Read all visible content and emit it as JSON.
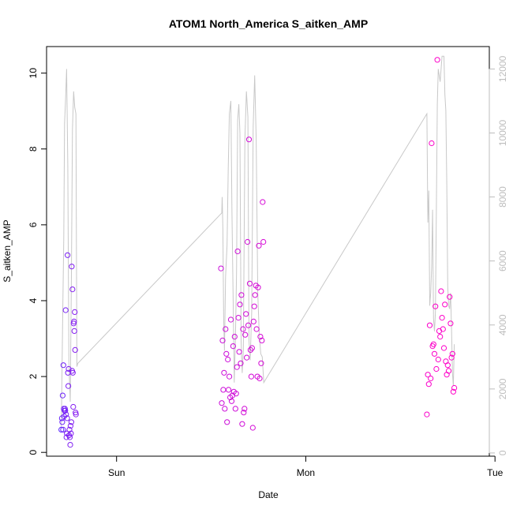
{
  "chart_data": {
    "type": "scatter",
    "title": "ATOM1 North_America S_aitken_AMP",
    "xlabel": "Date",
    "ylabel": "S_aitken_AMP",
    "x_ticks": [
      "Sun",
      "Mon",
      "Tue"
    ],
    "y_ticks": [
      "0",
      "2",
      "4",
      "6",
      "8",
      "10"
    ],
    "y_right_ticks": [
      "0",
      "2000",
      "4000",
      "6000",
      "8000",
      "10000",
      "12000"
    ],
    "x_unit": "day",
    "xlim": [
      -0.37,
      1.97
    ],
    "ylim": [
      -0.1,
      10.7
    ],
    "y_right_lim": [
      -100,
      12700
    ],
    "grid": false,
    "colors": {
      "line": "#c8c8c8",
      "points_start": "#5a28ff",
      "points_end": "#ff00c8",
      "right_axis": "#bdbdbd",
      "frame": "#000000"
    },
    "series": [
      {
        "type": "scatter",
        "points": [
          [
            -0.292,
            0.6
          ],
          [
            -0.289,
            0.9
          ],
          [
            -0.287,
            0.8
          ],
          [
            -0.285,
            1.5
          ],
          [
            -0.283,
            0.6
          ],
          [
            -0.281,
            2.3
          ],
          [
            -0.279,
            1.15
          ],
          [
            -0.277,
            0.95
          ],
          [
            -0.275,
            1.1
          ],
          [
            -0.273,
            1.15
          ],
          [
            -0.271,
            1.1
          ],
          [
            -0.269,
            3.75
          ],
          [
            -0.267,
            1.0
          ],
          [
            -0.265,
            0.4
          ],
          [
            -0.263,
            0.5
          ],
          [
            -0.261,
            0.9
          ],
          [
            -0.259,
            5.2
          ],
          [
            -0.257,
            2.1
          ],
          [
            -0.255,
            1.75
          ],
          [
            -0.253,
            2.2
          ],
          [
            -0.251,
            0.45
          ],
          [
            -0.249,
            0.6
          ],
          [
            -0.247,
            0.4
          ],
          [
            -0.245,
            0.2
          ],
          [
            -0.243,
            0.7
          ],
          [
            -0.241,
            0.5
          ],
          [
            -0.239,
            0.8
          ],
          [
            -0.237,
            4.9
          ],
          [
            -0.235,
            2.15
          ],
          [
            -0.233,
            4.3
          ],
          [
            -0.231,
            2.1
          ],
          [
            -0.229,
            1.2
          ],
          [
            -0.227,
            3.4
          ],
          [
            -0.225,
            3.45
          ],
          [
            -0.223,
            3.2
          ],
          [
            -0.221,
            3.7
          ],
          [
            -0.219,
            2.7
          ],
          [
            -0.217,
            1.05
          ],
          [
            -0.215,
            1.0
          ],
          [
            0.552,
            4.85
          ],
          [
            0.556,
            1.3
          ],
          [
            0.56,
            2.95
          ],
          [
            0.564,
            1.65
          ],
          [
            0.568,
            2.1
          ],
          [
            0.572,
            1.15
          ],
          [
            0.576,
            3.25
          ],
          [
            0.58,
            2.6
          ],
          [
            0.584,
            0.8
          ],
          [
            0.588,
            2.45
          ],
          [
            0.592,
            1.65
          ],
          [
            0.596,
            2.0
          ],
          [
            0.6,
            1.45
          ],
          [
            0.604,
            3.5
          ],
          [
            0.608,
            1.35
          ],
          [
            0.612,
            1.5
          ],
          [
            0.616,
            2.8
          ],
          [
            0.62,
            1.6
          ],
          [
            0.624,
            3.05
          ],
          [
            0.628,
            1.15
          ],
          [
            0.632,
            1.55
          ],
          [
            0.636,
            2.25
          ],
          [
            0.64,
            5.3
          ],
          [
            0.644,
            3.55
          ],
          [
            0.648,
            2.65
          ],
          [
            0.652,
            3.9
          ],
          [
            0.656,
            2.35
          ],
          [
            0.66,
            4.15
          ],
          [
            0.664,
            0.75
          ],
          [
            0.668,
            3.25
          ],
          [
            0.672,
            1.05
          ],
          [
            0.676,
            1.15
          ],
          [
            0.68,
            3.1
          ],
          [
            0.684,
            3.65
          ],
          [
            0.688,
            2.5
          ],
          [
            0.692,
            5.55
          ],
          [
            0.696,
            3.35
          ],
          [
            0.7,
            8.25
          ],
          [
            0.704,
            4.45
          ],
          [
            0.708,
            2.7
          ],
          [
            0.712,
            2.0
          ],
          [
            0.716,
            2.75
          ],
          [
            0.72,
            0.65
          ],
          [
            0.724,
            3.45
          ],
          [
            0.728,
            3.85
          ],
          [
            0.732,
            4.15
          ],
          [
            0.736,
            4.4
          ],
          [
            0.74,
            3.25
          ],
          [
            0.744,
            2.0
          ],
          [
            0.748,
            4.35
          ],
          [
            0.752,
            5.45
          ],
          [
            0.756,
            1.95
          ],
          [
            0.76,
            3.05
          ],
          [
            0.764,
            2.35
          ],
          [
            0.768,
            2.95
          ],
          [
            0.772,
            6.6
          ],
          [
            0.776,
            5.55
          ],
          [
            1.64,
            1.0
          ],
          [
            1.645,
            2.05
          ],
          [
            1.65,
            1.8
          ],
          [
            1.655,
            3.35
          ],
          [
            1.66,
            1.95
          ],
          [
            1.665,
            8.15
          ],
          [
            1.67,
            2.8
          ],
          [
            1.675,
            2.85
          ],
          [
            1.68,
            2.6
          ],
          [
            1.685,
            3.85
          ],
          [
            1.69,
            2.2
          ],
          [
            1.695,
            10.35
          ],
          [
            1.7,
            2.45
          ],
          [
            1.705,
            3.2
          ],
          [
            1.71,
            3.05
          ],
          [
            1.715,
            4.25
          ],
          [
            1.72,
            3.55
          ],
          [
            1.725,
            3.25
          ],
          [
            1.73,
            2.75
          ],
          [
            1.735,
            3.9
          ],
          [
            1.74,
            2.4
          ],
          [
            1.745,
            2.05
          ],
          [
            1.75,
            2.3
          ],
          [
            1.755,
            2.15
          ],
          [
            1.76,
            4.1
          ],
          [
            1.765,
            3.4
          ],
          [
            1.77,
            2.5
          ],
          [
            1.775,
            2.6
          ],
          [
            1.78,
            1.6
          ],
          [
            1.785,
            1.7
          ]
        ]
      },
      {
        "type": "line",
        "axis": "right",
        "points": [
          [
            -0.292,
            800
          ],
          [
            -0.285,
            4200
          ],
          [
            -0.279,
            6700
          ],
          [
            -0.275,
            10300
          ],
          [
            -0.27,
            11000
          ],
          [
            -0.264,
            12000
          ],
          [
            -0.258,
            9000
          ],
          [
            -0.252,
            2800
          ],
          [
            -0.245,
            1600
          ],
          [
            -0.239,
            5300
          ],
          [
            -0.233,
            10100
          ],
          [
            -0.227,
            11300
          ],
          [
            -0.221,
            10800
          ],
          [
            -0.215,
            10600
          ],
          [
            -0.21,
            2700
          ],
          [
            -0.205,
            2800
          ],
          [
            0.556,
            7500
          ],
          [
            0.558,
            8000
          ],
          [
            0.562,
            7000
          ],
          [
            0.566,
            4200
          ],
          [
            0.57,
            3200
          ],
          [
            0.576,
            5500
          ],
          [
            0.584,
            6500
          ],
          [
            0.59,
            8900
          ],
          [
            0.596,
            10600
          ],
          [
            0.604,
            11000
          ],
          [
            0.61,
            7500
          ],
          [
            0.616,
            4800
          ],
          [
            0.622,
            2200
          ],
          [
            0.628,
            3600
          ],
          [
            0.634,
            5600
          ],
          [
            0.64,
            10400
          ],
          [
            0.646,
            10900
          ],
          [
            0.652,
            10000
          ],
          [
            0.658,
            3500
          ],
          [
            0.664,
            2500
          ],
          [
            0.67,
            3200
          ],
          [
            0.678,
            9800
          ],
          [
            0.686,
            11300
          ],
          [
            0.694,
            10500
          ],
          [
            0.7,
            3500
          ],
          [
            0.706,
            2900
          ],
          [
            0.714,
            4400
          ],
          [
            0.722,
            10200
          ],
          [
            0.73,
            11800
          ],
          [
            0.738,
            9800
          ],
          [
            0.746,
            5000
          ],
          [
            0.754,
            3700
          ],
          [
            0.762,
            3100
          ],
          [
            0.77,
            3000
          ],
          [
            0.778,
            2200
          ],
          [
            1.64,
            10600
          ],
          [
            1.645,
            7200
          ],
          [
            1.65,
            8200
          ],
          [
            1.655,
            4600
          ],
          [
            1.66,
            5000
          ],
          [
            1.665,
            5800
          ],
          [
            1.67,
            7600
          ],
          [
            1.675,
            4200
          ],
          [
            1.68,
            3800
          ],
          [
            1.685,
            4400
          ],
          [
            1.69,
            7600
          ],
          [
            1.695,
            10900
          ],
          [
            1.7,
            12000
          ],
          [
            1.71,
            11600
          ],
          [
            1.72,
            12400
          ],
          [
            1.73,
            12400
          ],
          [
            1.735,
            11200
          ],
          [
            1.74,
            10700
          ],
          [
            1.745,
            8400
          ],
          [
            1.75,
            5200
          ],
          [
            1.755,
            4600
          ],
          [
            1.76,
            4500
          ],
          [
            1.765,
            5000
          ],
          [
            1.77,
            3900
          ],
          [
            1.775,
            2500
          ],
          [
            1.78,
            2100
          ],
          [
            1.785,
            3400
          ]
        ]
      }
    ]
  }
}
